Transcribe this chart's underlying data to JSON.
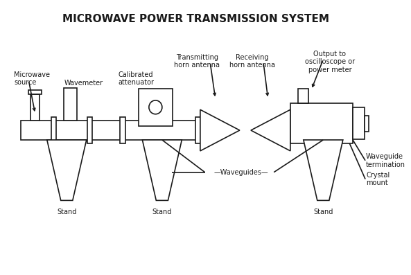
{
  "title": "MICROWAVE POWER TRANSMISSION SYSTEM",
  "title_fontsize": 11,
  "title_fontweight": "bold",
  "bg_color": "#ffffff",
  "line_color": "#1a1a1a",
  "lw": 1.2,
  "fs": 7.0,
  "labels": {
    "microwave_source": "Microwave\nsource",
    "wavemeter": "Wavemeter",
    "calibrated_attenuator": "Calibrated\nattenuator",
    "transmitting_horn": "Transmitting\nhorn antenna",
    "receiving_horn": "Receiving\nhorn antenna",
    "output": "Output to\noscilloscope or\npower meter",
    "waveguides": "Waveguides",
    "waveguide_termination": "Waveguide\ntermination",
    "crystal_mount": "Crystal\nmount",
    "stand": "Stand"
  }
}
